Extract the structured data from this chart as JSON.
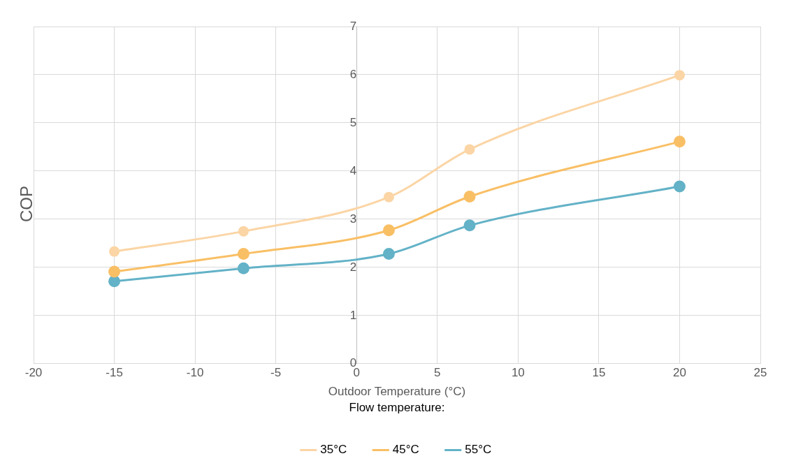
{
  "chart_data": {
    "type": "line",
    "xlabel": "Outdoor Temperature (°C)",
    "ylabel": "COP",
    "legend_title": "Flow temperature:",
    "legend": "bottom",
    "grid": true,
    "marker": "circle",
    "line_style": "solid",
    "x": [
      -15,
      -7,
      2,
      7,
      20
    ],
    "xlim": [
      -20,
      25
    ],
    "xticks": [
      -20,
      -15,
      -10,
      -5,
      0,
      5,
      10,
      15,
      20,
      25
    ],
    "ylim": [
      0,
      7
    ],
    "yticks": [
      0,
      1,
      2,
      3,
      4,
      5,
      6,
      7
    ],
    "series": [
      {
        "name": "35°C",
        "color": "#fbd5a5",
        "values": [
          2.33,
          2.75,
          3.46,
          4.45,
          5.99
        ]
      },
      {
        "name": "45°C",
        "color": "#f9bf65",
        "values": [
          1.91,
          2.28,
          2.77,
          3.47,
          4.61
        ]
      },
      {
        "name": "55°C",
        "color": "#63b2c7",
        "values": [
          1.71,
          1.98,
          2.28,
          2.87,
          3.68
        ]
      }
    ]
  }
}
